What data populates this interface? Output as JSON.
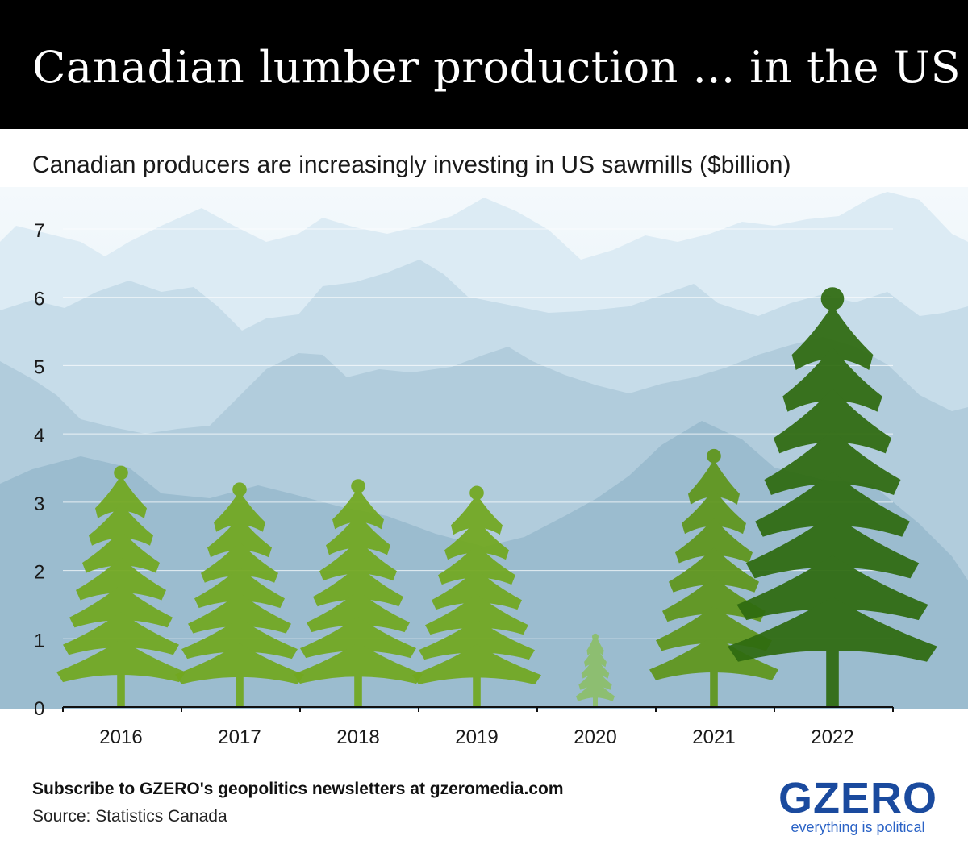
{
  "title": "Canadian lumber production ... in the US",
  "subtitle": "Canadian producers are increasingly investing in US sawmills ($billion)",
  "footer": {
    "subscribe": "Subscribe to GZERO's geopolitics newsletters at gzeromedia.com",
    "source": "Source: Statistics Canada"
  },
  "logo": {
    "word": "GZERO",
    "tagline": "everything is political"
  },
  "colors": {
    "light_green": "#72a820",
    "mid_green": "#5f961c",
    "pale_green": "#8cbf6a",
    "dark_green": "#2f6b10",
    "logo_blue": "#1a4a9e"
  },
  "chart_data": {
    "type": "bar",
    "style": "trees as bars over mountain landscape",
    "categories": [
      "2016",
      "2017",
      "2018",
      "2019",
      "2020",
      "2021",
      "2022"
    ],
    "values": [
      3.5,
      3.25,
      3.3,
      3.2,
      1.05,
      3.75,
      6.1
    ],
    "yticks": [
      "0",
      "1",
      "2",
      "3",
      "4",
      "5",
      "6",
      "7"
    ],
    "ylim": [
      0,
      7
    ],
    "grid": true
  }
}
